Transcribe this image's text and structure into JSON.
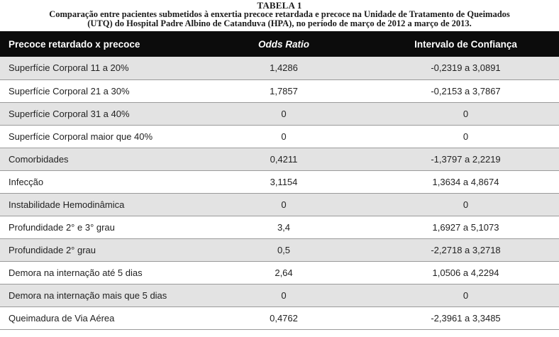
{
  "caption": {
    "label": "TABELA 1",
    "line1": "Comparação entre pacientes submetidos à enxertia precoce retardada e precoce na Unidade de Tratamento de Queimados",
    "line2": "(UTQ) do Hospital Padre Albino de Catanduva (HPA), no período de março de 2012 a março de 2013."
  },
  "table": {
    "headers": {
      "group": "Precoce retardado x precoce",
      "odds_ratio": "Odds Ratio",
      "ci": "Intervalo de Confiança"
    },
    "rows": [
      {
        "name": "Superfície Corporal 11 a 20%",
        "or": "1,4286",
        "ci": "-0,2319 a 3,0891"
      },
      {
        "name": "Superfície Corporal 21 a 30%",
        "or": "1,7857",
        "ci": "-0,2153 a 3,7867"
      },
      {
        "name": "Superfície Corporal 31 a 40%",
        "or": "0",
        "ci": "0"
      },
      {
        "name": "Superfície Corporal maior que 40%",
        "or": "0",
        "ci": "0"
      },
      {
        "name": "Comorbidades",
        "or": "0,4211",
        "ci": "-1,3797 a 2,2219"
      },
      {
        "name": "Infecção",
        "or": "3,1154",
        "ci": "1,3634 a 4,8674"
      },
      {
        "name": "Instabilidade Hemodinâmica",
        "or": "0",
        "ci": "0"
      },
      {
        "name": "Profundidade 2° e 3° grau",
        "or": "3,4",
        "ci": "1,6927 a 5,1073"
      },
      {
        "name": "Profundidade 2° grau",
        "or": "0,5",
        "ci": "-2,2718 a 3,2718"
      },
      {
        "name": "Demora na internação até 5 dias",
        "or": "2,64",
        "ci": "1,0506 a 4,2294"
      },
      {
        "name": "Demora na internação mais que 5 dias",
        "or": "0",
        "ci": "0"
      },
      {
        "name": "Queimadura de Via Aérea",
        "or": "0,4762",
        "ci": "-2,3961 a 3,3485"
      }
    ]
  }
}
